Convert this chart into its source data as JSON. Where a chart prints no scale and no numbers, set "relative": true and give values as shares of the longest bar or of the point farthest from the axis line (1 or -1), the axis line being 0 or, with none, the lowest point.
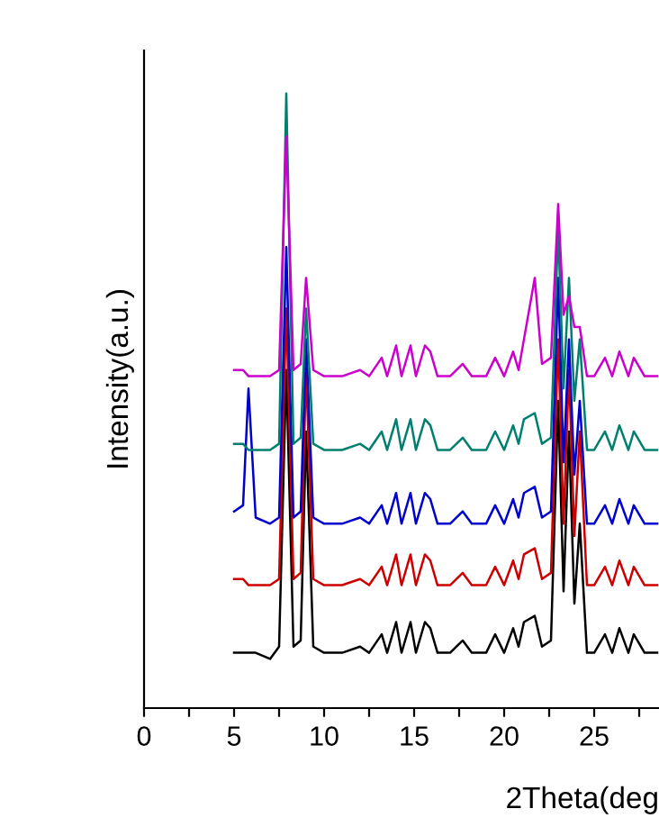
{
  "chart_data": {
    "type": "line",
    "relative": true,
    "xlabel": "2Theta(deg",
    "ylabel": "Intensity(a.u.)",
    "xlim": [
      0,
      28.6
    ],
    "xticks": [
      0,
      {
        "value": 2.5,
        "label": null
      },
      5,
      {
        "value": 7.5,
        "label": null
      },
      10,
      {
        "value": 12.5,
        "label": null
      },
      15,
      {
        "value": 17.5,
        "label": null
      },
      20,
      {
        "value": 22.5,
        "label": null
      },
      25,
      {
        "value": 27.5,
        "label": null
      }
    ],
    "x": [
      5.0,
      5.5,
      5.8,
      6.2,
      7.0,
      7.5,
      7.9,
      8.3,
      8.7,
      9.0,
      9.4,
      10.0,
      11.0,
      12.0,
      12.5,
      13.2,
      13.5,
      14.0,
      14.3,
      14.8,
      15.1,
      15.6,
      15.9,
      16.3,
      17.0,
      17.7,
      18.2,
      19.0,
      19.5,
      20.0,
      20.5,
      20.8,
      21.1,
      21.7,
      22.1,
      22.6,
      23.0,
      23.3,
      23.6,
      23.9,
      24.2,
      24.6,
      25.0,
      25.6,
      26.0,
      26.4,
      26.9,
      27.2,
      27.8,
      28.5
    ],
    "series": [
      {
        "color": "#000000",
        "values": [
          0.09,
          0.09,
          0.09,
          0.09,
          0.08,
          0.1,
          0.55,
          0.1,
          0.11,
          0.45,
          0.1,
          0.09,
          0.09,
          0.1,
          0.09,
          0.12,
          0.09,
          0.14,
          0.09,
          0.14,
          0.09,
          0.14,
          0.13,
          0.09,
          0.09,
          0.11,
          0.09,
          0.09,
          0.12,
          0.09,
          0.13,
          0.1,
          0.14,
          0.15,
          0.1,
          0.11,
          0.5,
          0.19,
          0.45,
          0.17,
          0.3,
          0.09,
          0.09,
          0.12,
          0.09,
          0.13,
          0.09,
          0.12,
          0.09,
          0.09
        ]
      },
      {
        "color": "#cc0000",
        "values": [
          0.21,
          0.21,
          0.2,
          0.2,
          0.2,
          0.21,
          0.65,
          0.21,
          0.22,
          0.55,
          0.21,
          0.2,
          0.2,
          0.21,
          0.2,
          0.23,
          0.2,
          0.25,
          0.2,
          0.25,
          0.2,
          0.25,
          0.24,
          0.2,
          0.2,
          0.22,
          0.2,
          0.2,
          0.23,
          0.2,
          0.24,
          0.21,
          0.25,
          0.26,
          0.21,
          0.22,
          0.6,
          0.3,
          0.55,
          0.28,
          0.45,
          0.2,
          0.2,
          0.23,
          0.2,
          0.24,
          0.2,
          0.23,
          0.2,
          0.2
        ]
      },
      {
        "color": "#0000cc",
        "values": [
          0.32,
          0.33,
          0.52,
          0.31,
          0.3,
          0.31,
          0.75,
          0.31,
          0.32,
          0.6,
          0.31,
          0.3,
          0.3,
          0.31,
          0.3,
          0.33,
          0.3,
          0.35,
          0.3,
          0.35,
          0.3,
          0.35,
          0.34,
          0.3,
          0.3,
          0.32,
          0.3,
          0.3,
          0.33,
          0.3,
          0.34,
          0.31,
          0.35,
          0.36,
          0.31,
          0.32,
          0.7,
          0.4,
          0.6,
          0.38,
          0.5,
          0.3,
          0.3,
          0.33,
          0.3,
          0.34,
          0.3,
          0.33,
          0.3,
          0.3
        ]
      },
      {
        "color": "#007f6e",
        "values": [
          0.43,
          0.43,
          0.42,
          0.42,
          0.42,
          0.43,
          1.0,
          0.43,
          0.44,
          0.65,
          0.43,
          0.42,
          0.42,
          0.43,
          0.42,
          0.45,
          0.42,
          0.47,
          0.42,
          0.47,
          0.42,
          0.47,
          0.46,
          0.42,
          0.42,
          0.44,
          0.42,
          0.42,
          0.45,
          0.42,
          0.46,
          0.43,
          0.47,
          0.48,
          0.43,
          0.44,
          0.78,
          0.52,
          0.7,
          0.5,
          0.6,
          0.42,
          0.42,
          0.45,
          0.42,
          0.46,
          0.42,
          0.45,
          0.42,
          0.42
        ]
      },
      {
        "color": "#cc00cc",
        "values": [
          0.55,
          0.55,
          0.54,
          0.54,
          0.54,
          0.55,
          0.93,
          0.55,
          0.56,
          0.7,
          0.55,
          0.54,
          0.54,
          0.55,
          0.54,
          0.57,
          0.54,
          0.59,
          0.54,
          0.59,
          0.54,
          0.59,
          0.58,
          0.54,
          0.54,
          0.56,
          0.54,
          0.54,
          0.57,
          0.54,
          0.58,
          0.55,
          0.6,
          0.7,
          0.56,
          0.57,
          0.82,
          0.64,
          0.67,
          0.62,
          0.62,
          0.54,
          0.54,
          0.57,
          0.54,
          0.58,
          0.54,
          0.57,
          0.54,
          0.54
        ]
      }
    ]
  }
}
